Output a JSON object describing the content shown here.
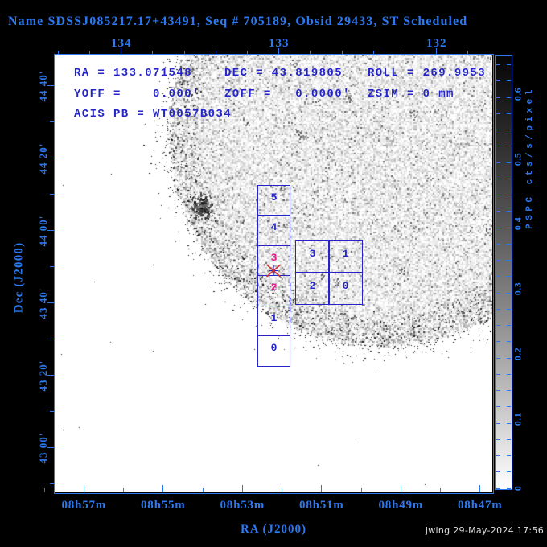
{
  "title": "Name SDSSJ085217.17+43491, Seq # 705189, Obsid 29433, ST Scheduled",
  "colors": {
    "background": "#000000",
    "accent_blue": "#2b78ef",
    "annotation_blue": "#2424c8",
    "selected_magenta": "#e6188c",
    "marker_red": "#cf3333",
    "timestamp_gray": "#e0e0e0"
  },
  "status": {
    "ra": "RA = 133.071548",
    "dec": "DEC = 43.819805",
    "roll": "ROLL = 269.9953",
    "yoff": "YOFF =    0.000'",
    "zoff": "ZOFF =   0.0000'",
    "zsim": "ZSIM = 0 mm",
    "acis_pb": "ACIS PB = WT0057B034"
  },
  "axes": {
    "top": {
      "labels": [
        "134",
        "133",
        "132"
      ]
    },
    "left": {
      "title": "Dec (J2000)",
      "labels": [
        "44 40'",
        "44 20'",
        "44 00'",
        "43 40'",
        "43 20'",
        "43 00'"
      ]
    },
    "bottom": {
      "title": "RA (J2000)",
      "labels": [
        "08h57m",
        "08h55m",
        "08h53m",
        "08h51m",
        "08h49m",
        "08h47m"
      ]
    }
  },
  "colorbar": {
    "title": "PSPC cts/s/pixel",
    "labels": [
      "0.6",
      "0.5",
      "0.4",
      "0.3",
      "0.2",
      "0.1",
      "0"
    ]
  },
  "instruments": {
    "acis_s": {
      "chips": [
        "5",
        "4",
        "3",
        "2",
        "1",
        "0"
      ],
      "selected": [
        "3",
        "2"
      ]
    },
    "acis_i": {
      "chips": [
        "3",
        "1",
        "2",
        "0"
      ]
    }
  },
  "footer": {
    "timestamp": "jwing 29-May-2024 17:56"
  }
}
